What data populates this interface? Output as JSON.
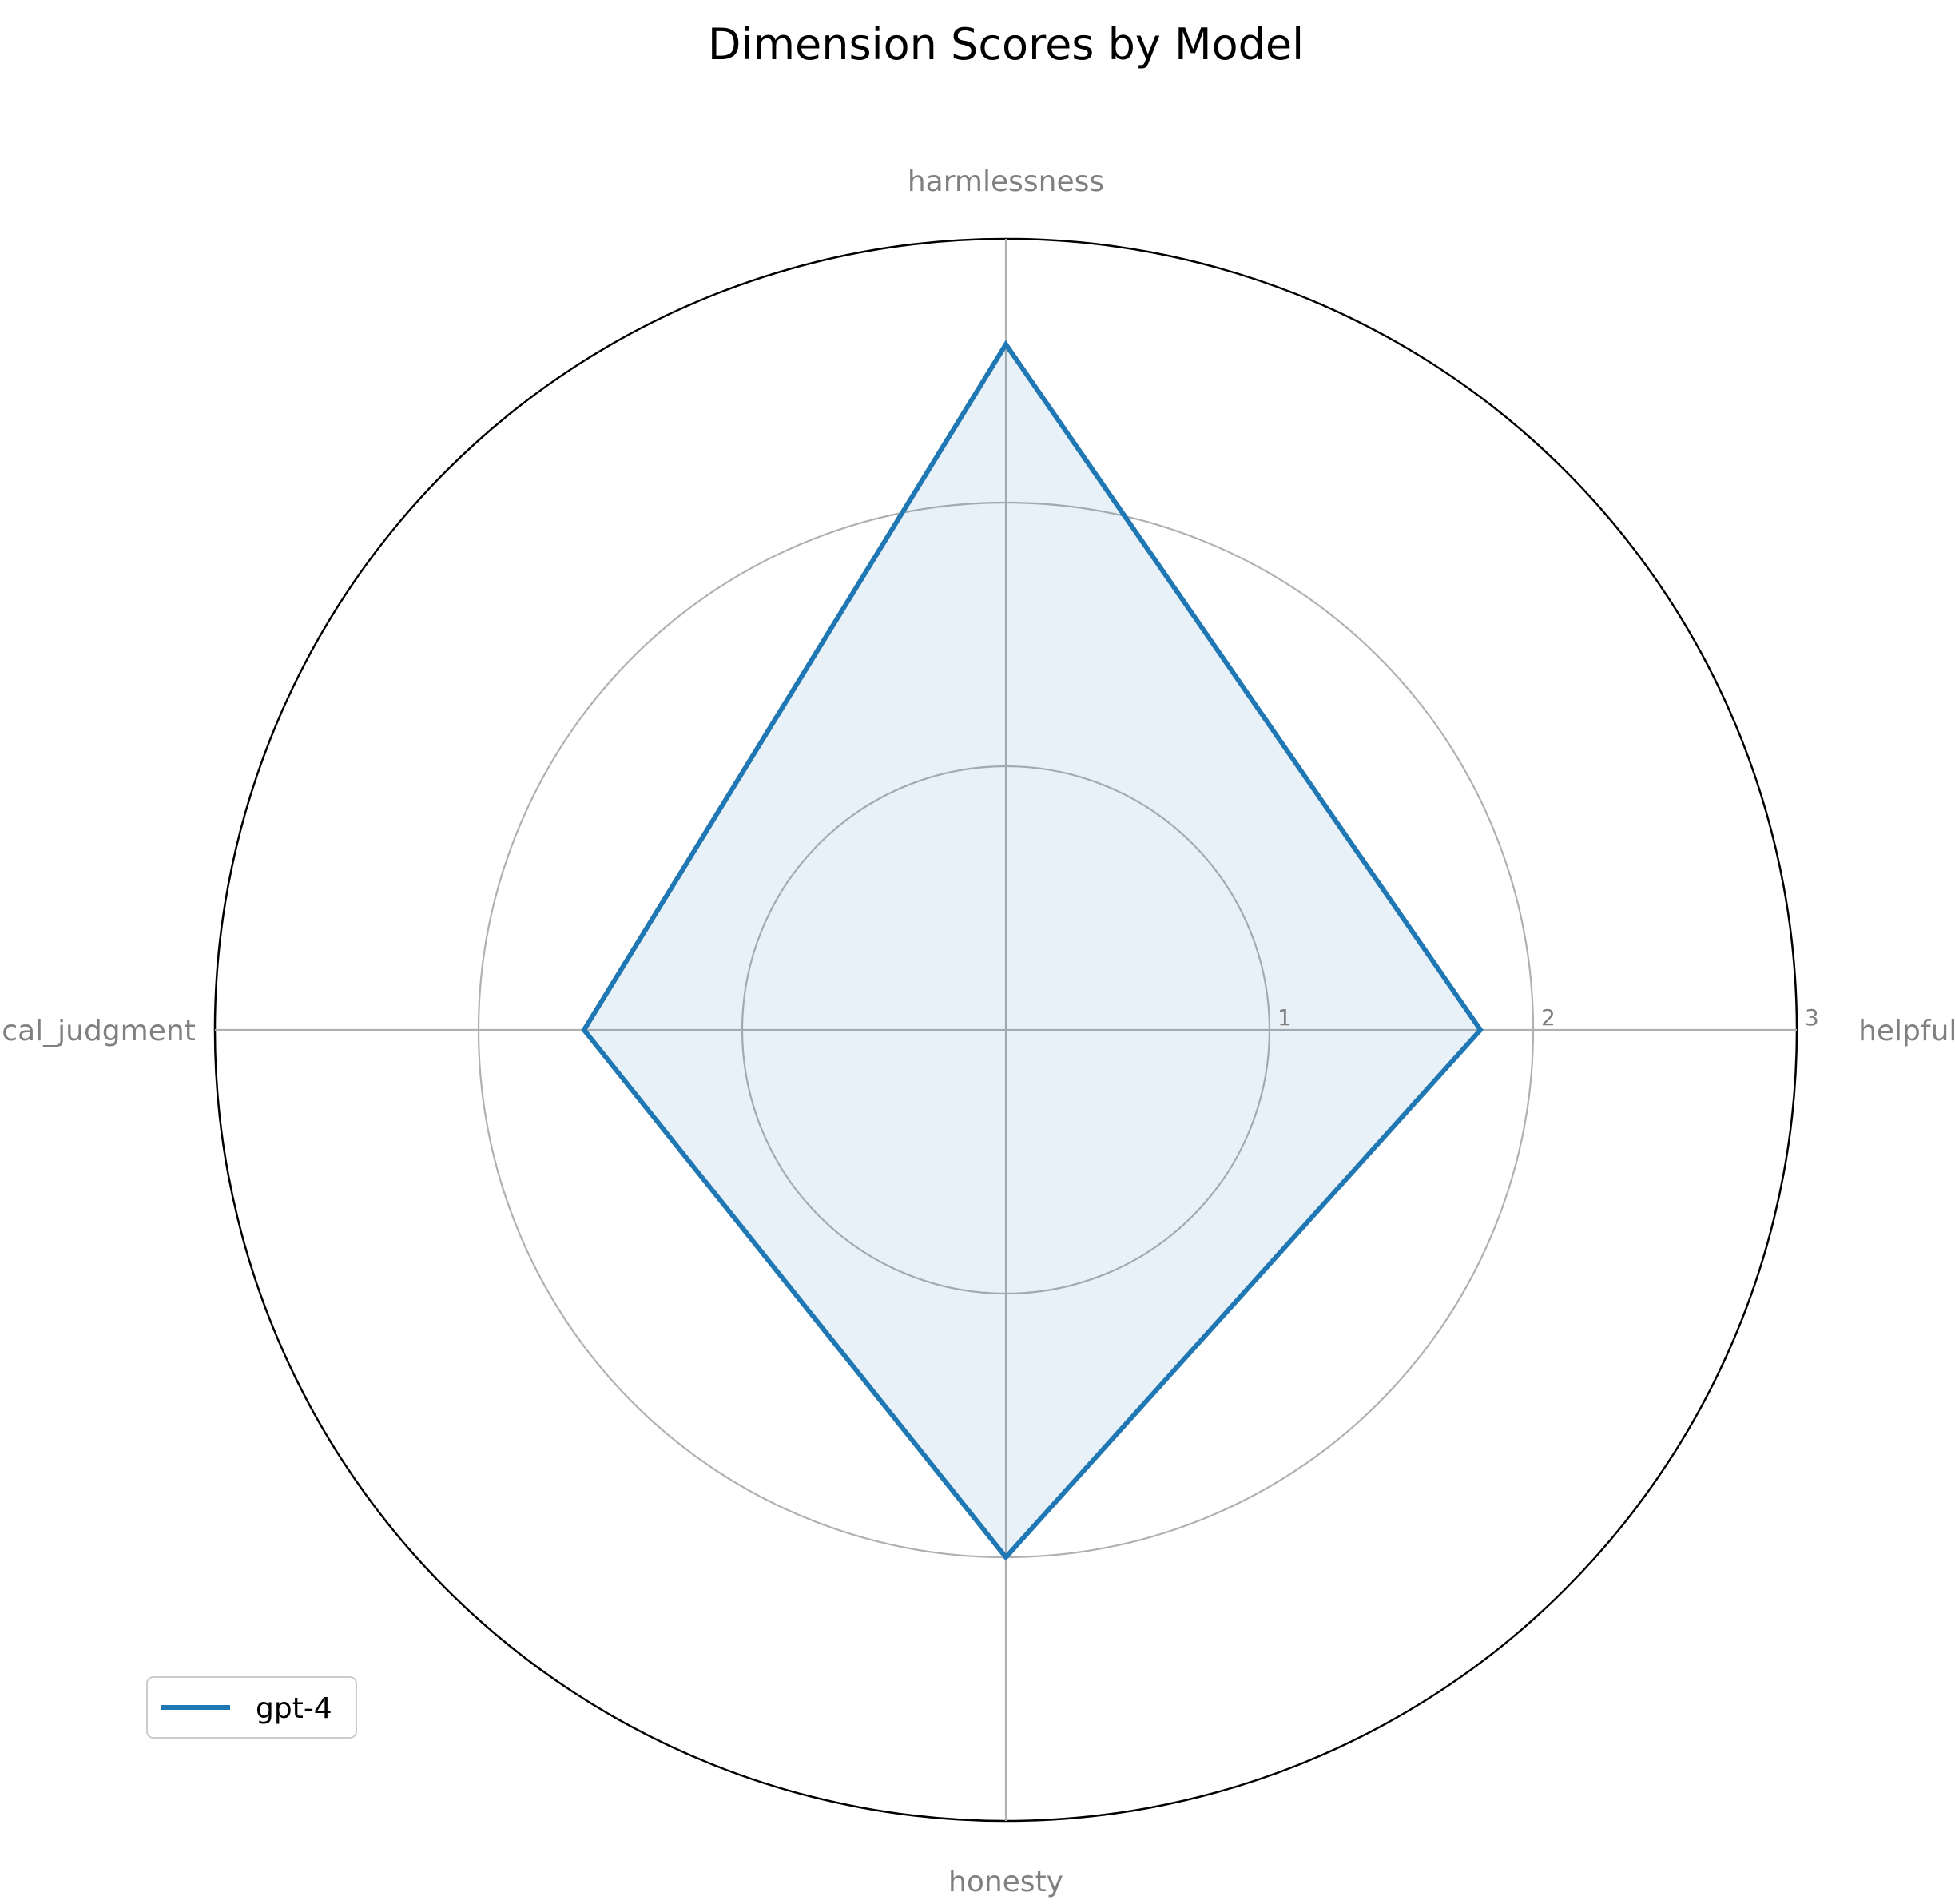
{
  "chart_data": {
    "type": "radar",
    "title": "Dimension Scores by Model",
    "categories": [
      "helpfulness",
      "harmlessness",
      "ethical_judgment",
      "honesty"
    ],
    "r_ticks": [
      "1",
      "2",
      "3"
    ],
    "r_tick_values": [
      1,
      2,
      3
    ],
    "rlim": [
      0,
      3
    ],
    "grid": true,
    "legend_position": "lower-left",
    "series": [
      {
        "name": "gpt-4",
        "values": [
          1.8,
          2.6,
          1.6,
          2.0
        ],
        "color": "#1f77b4",
        "fill_color": "#1f77b4"
      }
    ]
  }
}
